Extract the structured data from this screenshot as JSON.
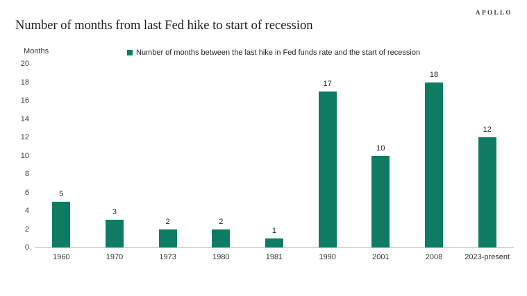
{
  "brand": {
    "logo_text": "APOLLO"
  },
  "title": "Number of months from last Fed hike to start of recession",
  "chart_data": {
    "type": "bar",
    "title": "Number of months from last Fed hike to start of recession",
    "categories": [
      "1960",
      "1970",
      "1973",
      "1980",
      "1981",
      "1990",
      "2001",
      "2008",
      "2023-present"
    ],
    "values": [
      5,
      3,
      2,
      2,
      1,
      17,
      10,
      18,
      12
    ],
    "xlabel": "",
    "ylabel": "Months",
    "ylim": [
      0,
      20
    ],
    "ytick_step": 2,
    "grid": false,
    "legend_position": "top",
    "legend": [
      "Number of months between the last hike in Fed funds rate and the start of recession"
    ],
    "bar_color": "#0d7c63"
  },
  "colors": {
    "bar": "#0d7c63",
    "baseline": "#d6d6d6",
    "title_text": "#1d1d1d",
    "tick_text": "#3c3c3c"
  }
}
